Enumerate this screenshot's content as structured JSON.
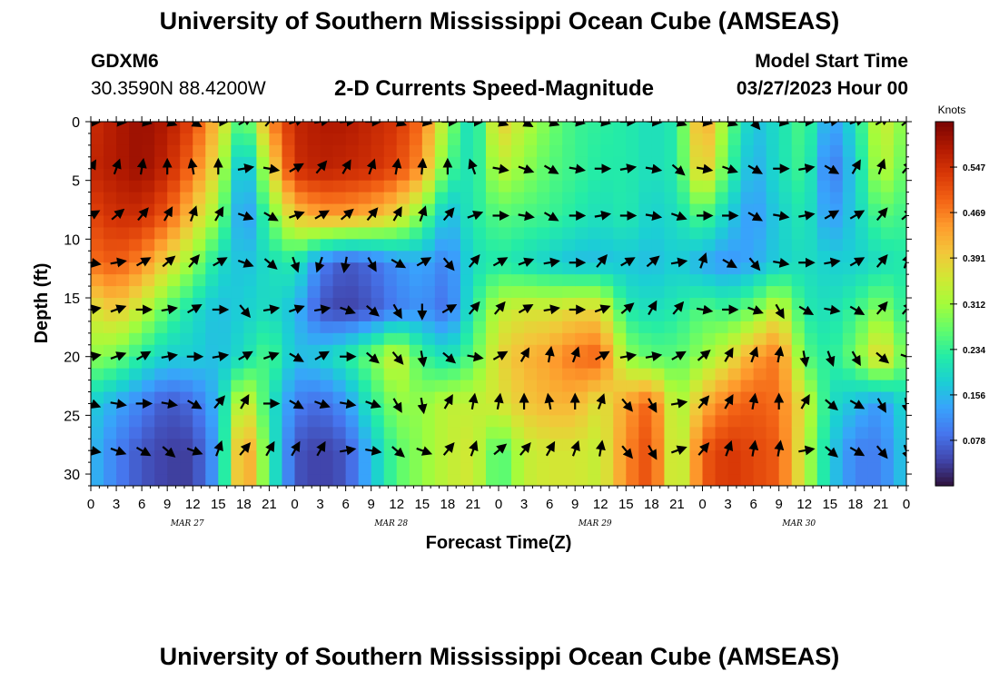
{
  "page": {
    "title": "University of Southern Mississippi Ocean Cube (AMSEAS)",
    "station": "GDXM6",
    "coords": "30.3590N  88.4200W",
    "subtitle": "2-D Currents Speed-Magnitude",
    "start_label": "Model Start Time",
    "start_value": "03/27/2023 Hour 00",
    "title_bottom": "University of Southern Mississippi Ocean Cube (AMSEAS)"
  },
  "chart_data": {
    "type": "heatmap",
    "title": "2-D Currents Speed-Magnitude",
    "xlabel": "Forecast Time(Z)",
    "ylabel": "Depth (ft)",
    "x_tick_labels": [
      "0",
      "3",
      "6",
      "9",
      "12",
      "15",
      "18",
      "21",
      "0",
      "3",
      "6",
      "9",
      "12",
      "15",
      "18",
      "21",
      "0",
      "3",
      "6",
      "9",
      "12",
      "15",
      "18",
      "21",
      "0",
      "3",
      "6",
      "9",
      "12",
      "15",
      "18",
      "21",
      "0"
    ],
    "date_labels": [
      "MAR 27",
      "MAR 28",
      "MAR 29",
      "MAR 30"
    ],
    "xlim_hours": [
      0,
      96
    ],
    "y_ticks": [
      0,
      5,
      10,
      15,
      20,
      25,
      30
    ],
    "ylim": [
      0,
      31
    ],
    "y_inverted": true,
    "colorbar": {
      "label": "Knots",
      "ticks": [
        0.078,
        0.156,
        0.234,
        0.312,
        0.391,
        0.469,
        0.547
      ],
      "range": [
        0,
        0.625
      ],
      "colors": [
        "#30123b",
        "#4145ab",
        "#4675ed",
        "#39a2fc",
        "#1bcfd4",
        "#24eca6",
        "#61fc6c",
        "#a4fc3b",
        "#d1e834",
        "#f3c63a",
        "#fe9b2d",
        "#f36315",
        "#d93807",
        "#b11901",
        "#7a0403"
      ]
    },
    "depths_ft": [
      0,
      4,
      8,
      12,
      16,
      20,
      24,
      28
    ],
    "times_hours": [
      0,
      3,
      6,
      9,
      12,
      15,
      18,
      21,
      24,
      27,
      30,
      33,
      36,
      39,
      42,
      45,
      48,
      51,
      54,
      57,
      60,
      63,
      66,
      69,
      72,
      75,
      78,
      81,
      84,
      87,
      90,
      93,
      96
    ],
    "speed_knots": [
      [
        0.55,
        0.58,
        0.6,
        0.58,
        0.52,
        0.4,
        0.22,
        0.45,
        0.56,
        0.58,
        0.58,
        0.56,
        0.54,
        0.48,
        0.3,
        0.18,
        0.4,
        0.33,
        0.28,
        0.24,
        0.23,
        0.22,
        0.2,
        0.22,
        0.46,
        0.28,
        0.16,
        0.2,
        0.26,
        0.12,
        0.2,
        0.36,
        0.28
      ],
      [
        0.56,
        0.58,
        0.6,
        0.56,
        0.48,
        0.36,
        0.12,
        0.36,
        0.55,
        0.57,
        0.56,
        0.55,
        0.52,
        0.45,
        0.25,
        0.2,
        0.34,
        0.3,
        0.26,
        0.24,
        0.22,
        0.22,
        0.2,
        0.22,
        0.42,
        0.25,
        0.14,
        0.2,
        0.25,
        0.08,
        0.18,
        0.34,
        0.26
      ],
      [
        0.52,
        0.55,
        0.55,
        0.5,
        0.4,
        0.3,
        0.1,
        0.26,
        0.4,
        0.44,
        0.44,
        0.42,
        0.38,
        0.28,
        0.15,
        0.22,
        0.26,
        0.25,
        0.24,
        0.22,
        0.2,
        0.22,
        0.18,
        0.2,
        0.26,
        0.18,
        0.12,
        0.18,
        0.22,
        0.12,
        0.18,
        0.26,
        0.24
      ],
      [
        0.48,
        0.5,
        0.46,
        0.38,
        0.3,
        0.2,
        0.16,
        0.2,
        0.22,
        0.1,
        0.06,
        0.08,
        0.12,
        0.14,
        0.1,
        0.2,
        0.22,
        0.2,
        0.18,
        0.16,
        0.16,
        0.17,
        0.16,
        0.18,
        0.14,
        0.12,
        0.14,
        0.18,
        0.2,
        0.18,
        0.18,
        0.2,
        0.22
      ],
      [
        0.36,
        0.4,
        0.34,
        0.26,
        0.2,
        0.16,
        0.18,
        0.2,
        0.16,
        0.06,
        0.04,
        0.06,
        0.1,
        0.12,
        0.08,
        0.22,
        0.34,
        0.36,
        0.36,
        0.38,
        0.38,
        0.22,
        0.2,
        0.22,
        0.26,
        0.24,
        0.28,
        0.36,
        0.22,
        0.2,
        0.24,
        0.3,
        0.22
      ],
      [
        0.3,
        0.28,
        0.22,
        0.18,
        0.18,
        0.16,
        0.2,
        0.26,
        0.16,
        0.18,
        0.22,
        0.28,
        0.36,
        0.24,
        0.2,
        0.26,
        0.38,
        0.42,
        0.44,
        0.48,
        0.5,
        0.3,
        0.26,
        0.26,
        0.3,
        0.36,
        0.44,
        0.48,
        0.26,
        0.22,
        0.28,
        0.4,
        0.26
      ],
      [
        0.18,
        0.14,
        0.1,
        0.06,
        0.08,
        0.16,
        0.38,
        0.22,
        0.1,
        0.08,
        0.12,
        0.22,
        0.3,
        0.3,
        0.34,
        0.34,
        0.36,
        0.4,
        0.42,
        0.42,
        0.36,
        0.44,
        0.5,
        0.3,
        0.42,
        0.48,
        0.5,
        0.48,
        0.36,
        0.2,
        0.16,
        0.12,
        0.2
      ],
      [
        0.16,
        0.1,
        0.06,
        0.04,
        0.04,
        0.14,
        0.48,
        0.24,
        0.06,
        0.04,
        0.06,
        0.16,
        0.26,
        0.3,
        0.34,
        0.36,
        0.24,
        0.34,
        0.36,
        0.36,
        0.34,
        0.46,
        0.52,
        0.3,
        0.5,
        0.54,
        0.52,
        0.5,
        0.34,
        0.18,
        0.1,
        0.1,
        0.18
      ]
    ],
    "direction_deg": [
      [
        90,
        95,
        100,
        110,
        120,
        90,
        60,
        40,
        70,
        80,
        85,
        90,
        110,
        100,
        90,
        90,
        110,
        120,
        110,
        100,
        100,
        90,
        95,
        110,
        100,
        110,
        140,
        100,
        90,
        80,
        70,
        60,
        50
      ],
      [
        30,
        20,
        10,
        0,
        350,
        0,
        80,
        100,
        60,
        40,
        30,
        20,
        10,
        5,
        0,
        340,
        100,
        110,
        120,
        100,
        90,
        80,
        100,
        130,
        100,
        110,
        120,
        90,
        80,
        120,
        30,
        20,
        40
      ],
      [
        60,
        50,
        40,
        30,
        20,
        30,
        110,
        120,
        70,
        60,
        50,
        40,
        30,
        20,
        40,
        70,
        90,
        100,
        120,
        90,
        80,
        90,
        100,
        110,
        90,
        90,
        120,
        100,
        80,
        60,
        60,
        40,
        50
      ],
      [
        100,
        80,
        60,
        50,
        40,
        60,
        110,
        130,
        160,
        200,
        190,
        150,
        120,
        60,
        140,
        40,
        60,
        70,
        80,
        90,
        40,
        60,
        50,
        80,
        20,
        120,
        140,
        100,
        90,
        80,
        60,
        40,
        20
      ],
      [
        80,
        70,
        90,
        80,
        60,
        90,
        140,
        80,
        70,
        80,
        110,
        130,
        150,
        180,
        60,
        40,
        40,
        60,
        80,
        90,
        70,
        50,
        30,
        40,
        100,
        90,
        110,
        150,
        120,
        100,
        120,
        40,
        40
      ],
      [
        80,
        70,
        60,
        80,
        90,
        80,
        60,
        70,
        120,
        60,
        90,
        130,
        140,
        170,
        130,
        100,
        60,
        30,
        10,
        20,
        60,
        80,
        80,
        60,
        50,
        30,
        20,
        10,
        170,
        160,
        150,
        130,
        110
      ],
      [
        110,
        100,
        90,
        100,
        120,
        40,
        30,
        90,
        120,
        110,
        100,
        110,
        150,
        170,
        30,
        10,
        10,
        0,
        350,
        0,
        20,
        140,
        150,
        80,
        40,
        30,
        10,
        0,
        30,
        130,
        120,
        150,
        170
      ],
      [
        100,
        110,
        120,
        130,
        110,
        20,
        40,
        30,
        30,
        30,
        80,
        100,
        130,
        110,
        40,
        20,
        50,
        40,
        30,
        20,
        10,
        140,
        150,
        70,
        40,
        20,
        10,
        10,
        80,
        130,
        120,
        140,
        160
      ]
    ]
  }
}
